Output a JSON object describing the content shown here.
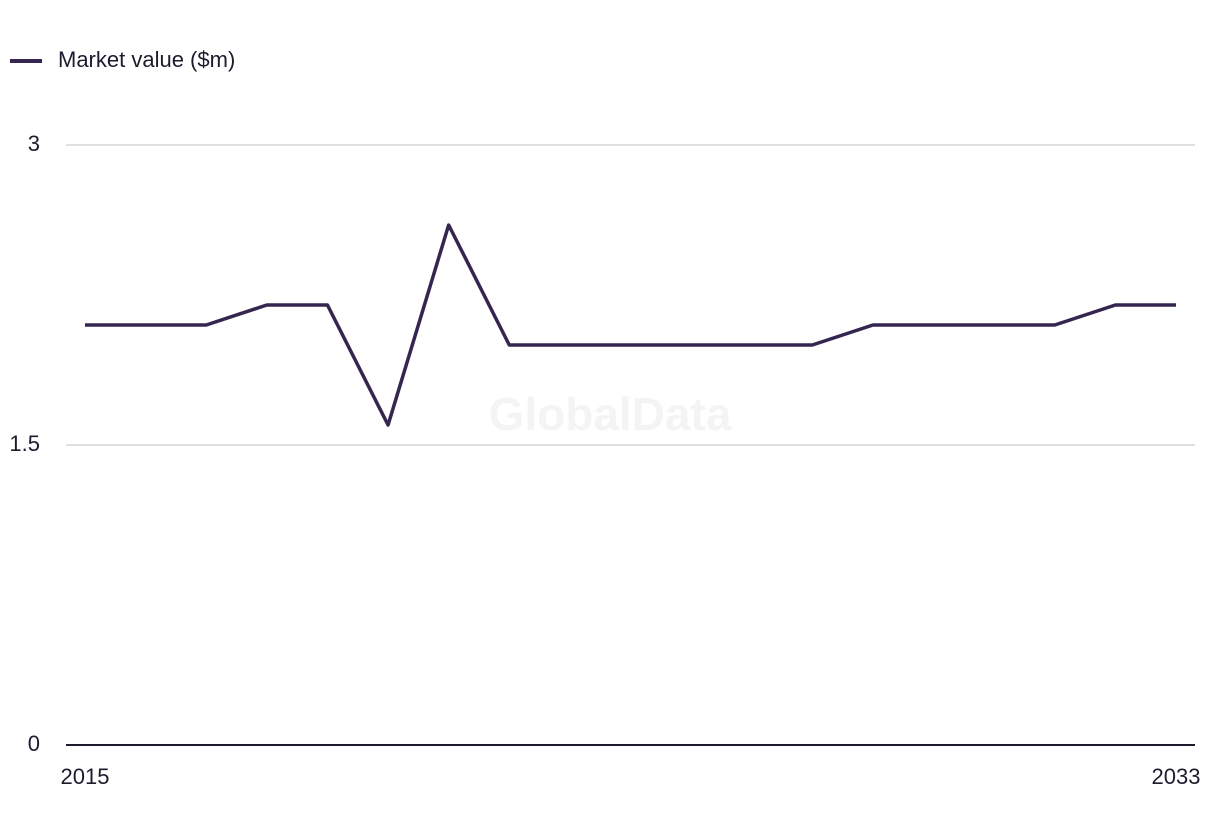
{
  "chart_data": {
    "type": "line",
    "watermark": "GlobalData",
    "x": [
      2015,
      2016,
      2017,
      2018,
      2019,
      2020,
      2021,
      2022,
      2023,
      2024,
      2025,
      2026,
      2027,
      2028,
      2029,
      2030,
      2031,
      2032,
      2033
    ],
    "series": [
      {
        "name": "Market value ($m)",
        "color": "#35264f",
        "values": [
          2.1,
          2.1,
          2.1,
          2.2,
          2.2,
          1.6,
          2.6,
          2.0,
          2.0,
          2.0,
          2.0,
          2.0,
          2.0,
          2.1,
          2.1,
          2.1,
          2.1,
          2.2,
          2.2
        ]
      }
    ],
    "xlim": [
      2015,
      2033
    ],
    "xticks": [
      2015,
      2033
    ],
    "ylim": [
      0,
      3
    ],
    "yticks": [
      0,
      1.5,
      3
    ],
    "grid": true,
    "legend": "top-left"
  }
}
